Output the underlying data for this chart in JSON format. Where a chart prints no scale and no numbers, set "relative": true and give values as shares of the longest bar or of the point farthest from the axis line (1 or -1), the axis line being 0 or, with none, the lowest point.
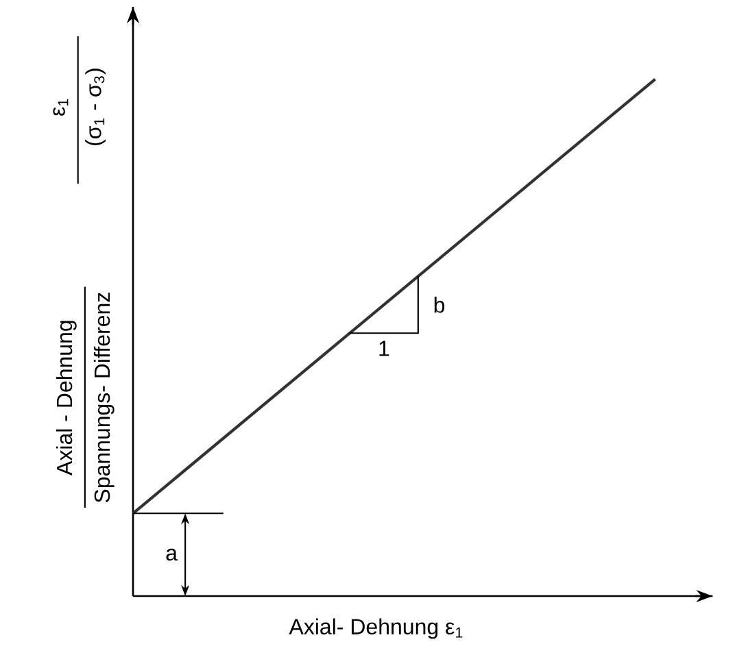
{
  "chart_data": {
    "type": "line",
    "relative": true,
    "xlabel": "Axial- Dehnung ε$_{1}$",
    "categories": [
      null,
      null
    ],
    "series": [
      {
        "color": "#333333",
        "values": [
          0.16,
          1
        ]
      }
    ],
    "annotations": [
      "Axial - Dehnung",
      "Spannungs- Differenz",
      "ε$_{1}$",
      "(σ$_{1}$ - σ$_{3}$)",
      "1",
      "b",
      "a"
    ]
  }
}
